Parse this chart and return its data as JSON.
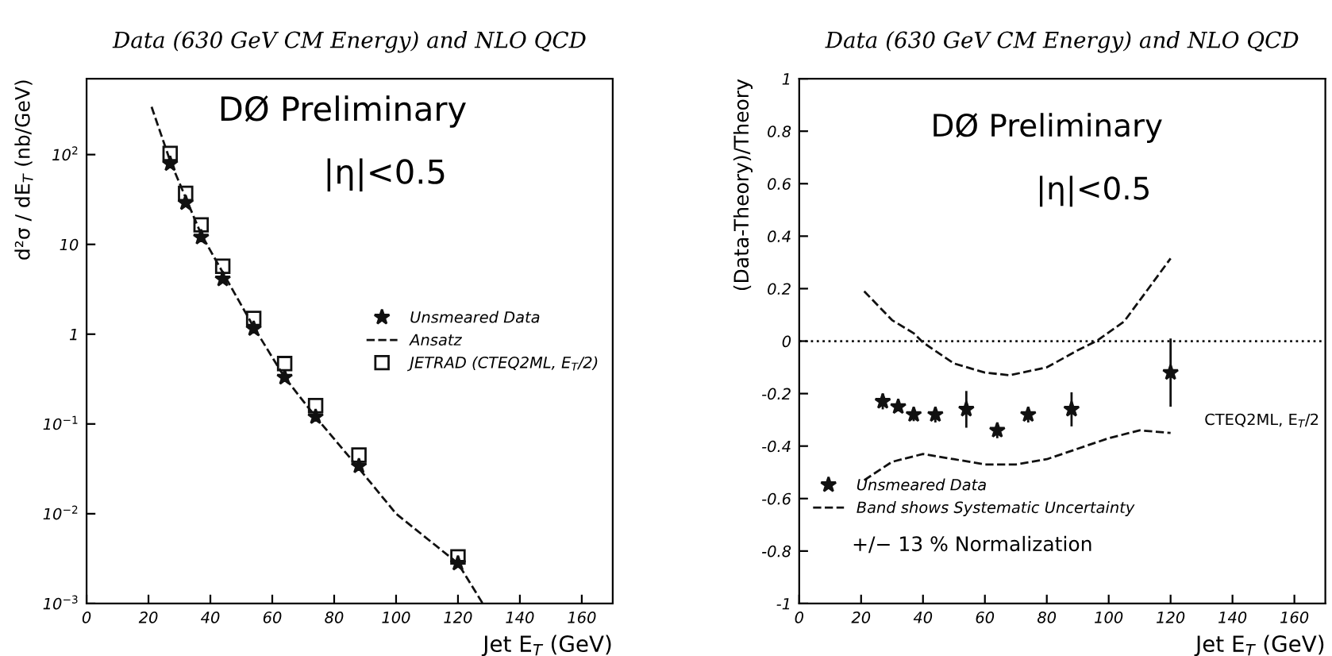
{
  "chart_data": [
    {
      "type": "scatter",
      "title": "Data (630 GeV CM Energy) and NLO QCD",
      "xlabel": "Jet E$_{T}$ (GeV)",
      "ylabel": "d²σ / dE$_{T}$ (nb/GeV)",
      "log": "y",
      "xlim": [
        0,
        170
      ],
      "xticks": [
        0,
        20,
        40,
        60,
        80,
        100,
        120,
        140,
        160
      ],
      "ylim": [
        0.001,
        700
      ],
      "yticks": [
        {
          "value": 0.001,
          "label": "10$^{−3}$"
        },
        {
          "value": 0.01,
          "label": "10$^{−2}$"
        },
        {
          "value": 0.1,
          "label": "10$^{−1}$"
        },
        1,
        10,
        {
          "value": 100,
          "label": "10$^{2}$"
        }
      ],
      "grid": false,
      "legend": "right",
      "annotations": [
        "DØ Preliminary",
        "|η|<0.5"
      ],
      "series": [
        {
          "name": "Unsmeared Data",
          "marker": "star",
          "color": "#111111",
          "x": [
            27,
            32,
            37,
            44,
            54,
            64,
            74,
            88,
            120
          ],
          "values": [
            79,
            29,
            12,
            4.1,
            1.15,
            0.33,
            0.12,
            0.034,
            0.0028
          ]
        },
        {
          "name": "Ansatz",
          "type": "line",
          "marker": "none",
          "line_style": "dashed",
          "color": "#111111",
          "x": [
            21,
            27,
            37,
            54,
            64,
            74,
            88,
            100,
            120,
            128
          ],
          "values": [
            340,
            85,
            13,
            1.2,
            0.33,
            0.12,
            0.032,
            0.01,
            0.0028,
            0.001
          ]
        },
        {
          "name": "JETRAD (CTEQ2ML, E$_{T}$/2)",
          "marker": "square",
          "color": "#111111",
          "x": [
            27,
            32,
            37,
            44,
            54,
            64,
            74,
            88,
            120
          ],
          "values": [
            103,
            37,
            16.5,
            5.7,
            1.5,
            0.47,
            0.16,
            0.045,
            0.0033
          ]
        }
      ]
    },
    {
      "type": "scatter",
      "title": "Data (630 GeV CM Energy) and NLO QCD",
      "xlabel": "Jet E$_{T}$ (GeV)",
      "ylabel": "(Data-Theory)/Theory",
      "xlim": [
        0,
        170
      ],
      "xticks": [
        0,
        20,
        40,
        60,
        80,
        100,
        120,
        140,
        160
      ],
      "ylim": [
        -1,
        1
      ],
      "yticks": [
        {
          "value": -1,
          "label": "-1"
        },
        {
          "value": -0.8,
          "label": "-0.8"
        },
        {
          "value": -0.6,
          "label": "-0.6"
        },
        {
          "value": -0.4,
          "label": "-0.4"
        },
        {
          "value": -0.2,
          "label": "-0.2"
        },
        0,
        0.2,
        0.4,
        0.6,
        0.8,
        1
      ],
      "grid": false,
      "legend": "bottom left",
      "ref_lines": [
        {
          "axis": "y",
          "value": 0,
          "line_style": "dotted",
          "color": "#111111"
        }
      ],
      "annotations": [
        "DØ Preliminary",
        "|η|<0.5",
        "+/− 13 % Normalization",
        "CTEQ2ML, E$_{T}$/2"
      ],
      "series": [
        {
          "name": "Unsmeared Data",
          "marker": "star",
          "color": "#111111",
          "x": [
            27,
            32,
            37,
            44,
            54,
            64,
            74,
            88,
            120
          ],
          "values": [
            -0.23,
            -0.25,
            -0.28,
            -0.28,
            -0.26,
            -0.34,
            -0.28,
            -0.26,
            -0.12
          ],
          "errors": [
            0.03,
            0.015,
            0.025,
            0.03,
            0.07,
            0.03,
            0.03,
            0.065,
            0.13
          ]
        },
        {
          "name": "Band shows Systematic Uncertainty",
          "type": "line",
          "marker": "none",
          "line_style": "dashed",
          "color": "#111111",
          "x": [
            21,
            30,
            37,
            40,
            50,
            60,
            68,
            80,
            90,
            96,
            105,
            120
          ],
          "values": [
            0.19,
            0.08,
            0.03,
            -0.005,
            -0.085,
            -0.12,
            -0.13,
            -0.1,
            -0.035,
            0,
            0.075,
            0.315
          ]
        },
        {
          "type": "line",
          "marker": "none",
          "line_style": "dashed",
          "color": "#111111",
          "x": [
            21,
            30,
            40,
            50,
            60,
            70,
            80,
            90,
            100,
            110,
            120
          ],
          "values": [
            -0.53,
            -0.46,
            -0.43,
            -0.45,
            -0.47,
            -0.47,
            -0.45,
            -0.41,
            -0.37,
            -0.34,
            -0.35
          ]
        }
      ]
    }
  ]
}
